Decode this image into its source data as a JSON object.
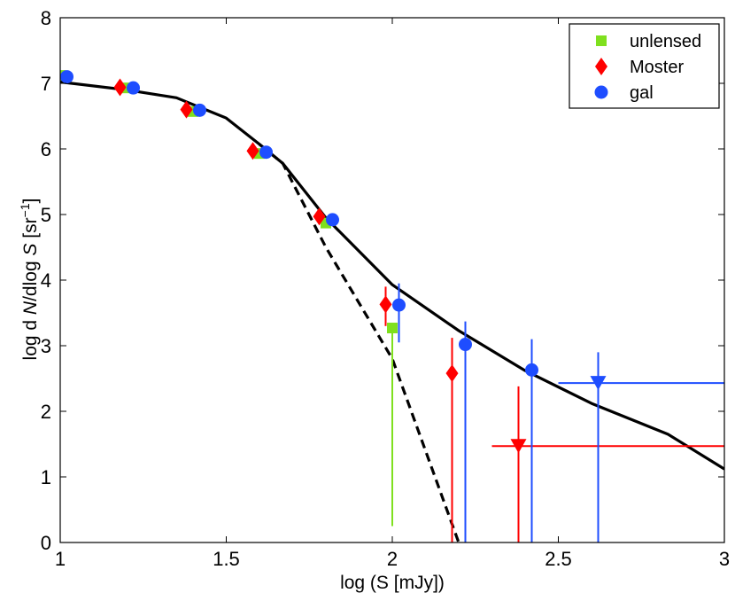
{
  "chart_data": {
    "type": "scatter",
    "xlabel": "log (S [mJy])",
    "ylabel": {
      "pre": "log d ",
      "n": "N",
      "mid": "/dlog ",
      "s": "S",
      "unit": " [sr",
      "exp": "−1",
      "close": "]"
    },
    "xlim": [
      1,
      3
    ],
    "ylim": [
      0,
      8
    ],
    "xticks": [
      1,
      1.5,
      2,
      2.5,
      3
    ],
    "xtick_labels": [
      "1",
      "1.5",
      "2",
      "2.5",
      "3"
    ],
    "yticks": [
      0,
      1,
      2,
      3,
      4,
      5,
      6,
      7,
      8
    ],
    "ytick_labels": [
      "0",
      "1",
      "2",
      "3",
      "4",
      "5",
      "6",
      "7",
      "8"
    ],
    "grid": false,
    "legend_position": "top-right",
    "lines": [
      {
        "name": "model-total",
        "style": "solid",
        "color": "#000000",
        "x": [
          1.0,
          1.2,
          1.35,
          1.5,
          1.6,
          1.67,
          1.8,
          2.0,
          2.2,
          2.4,
          2.6,
          2.83,
          3.0
        ],
        "y": [
          7.02,
          6.9,
          6.78,
          6.47,
          6.07,
          5.78,
          4.95,
          3.93,
          3.23,
          2.62,
          2.12,
          1.65,
          1.12
        ]
      },
      {
        "name": "model-unlensed",
        "style": "dashed",
        "color": "#000000",
        "x": [
          1.6,
          1.67,
          1.8,
          2.0,
          2.1,
          2.2
        ],
        "y": [
          6.07,
          5.78,
          4.5,
          2.8,
          1.4,
          0.0
        ]
      }
    ],
    "series": [
      {
        "name": "unlensed",
        "marker": "square",
        "color": "#7fe01e",
        "points": [
          {
            "x": 1.0,
            "y": 7.12
          },
          {
            "x": 1.2,
            "y": 6.93
          },
          {
            "x": 1.4,
            "y": 6.57
          },
          {
            "x": 1.6,
            "y": 5.93
          },
          {
            "x": 1.8,
            "y": 4.87
          },
          {
            "x": 2.0,
            "y": 3.27,
            "ylo": 0.25,
            "yhi": 3.27
          }
        ]
      },
      {
        "name": "Moster",
        "marker": "diamond",
        "color": "#ff0000",
        "points": [
          {
            "x": 1.18,
            "y": 6.94
          },
          {
            "x": 1.38,
            "y": 6.6,
            "ylo": 6.5,
            "yhi": 6.7
          },
          {
            "x": 1.58,
            "y": 5.97
          },
          {
            "x": 1.78,
            "y": 4.97
          },
          {
            "x": 1.98,
            "y": 3.63,
            "ylo": 3.3,
            "yhi": 3.9
          },
          {
            "x": 2.18,
            "y": 2.58,
            "ylo": 0.0,
            "yhi": 3.12
          }
        ],
        "upper_limits": [
          {
            "x": 2.38,
            "y": 1.47,
            "ylo": 0.0,
            "yhi": 2.38,
            "xlo": 2.3,
            "xhi": 3.0
          }
        ]
      },
      {
        "name": "gal",
        "marker": "circle",
        "color": "#1e4dff",
        "points": [
          {
            "x": 1.02,
            "y": 7.1
          },
          {
            "x": 1.22,
            "y": 6.93
          },
          {
            "x": 1.42,
            "y": 6.59
          },
          {
            "x": 1.62,
            "y": 5.95
          },
          {
            "x": 1.82,
            "y": 4.92
          },
          {
            "x": 2.02,
            "y": 3.62,
            "ylo": 3.05,
            "yhi": 3.95
          },
          {
            "x": 2.22,
            "y": 3.02,
            "ylo": 0.0,
            "yhi": 3.37
          },
          {
            "x": 2.42,
            "y": 2.63,
            "ylo": 0.0,
            "yhi": 3.1
          }
        ],
        "upper_limits": [
          {
            "x": 2.62,
            "y": 2.43,
            "ylo": 0.0,
            "yhi": 2.9,
            "xlo": 2.5,
            "xhi": 3.0
          }
        ]
      }
    ],
    "legend": [
      "unlensed",
      "Moster",
      "gal"
    ]
  }
}
